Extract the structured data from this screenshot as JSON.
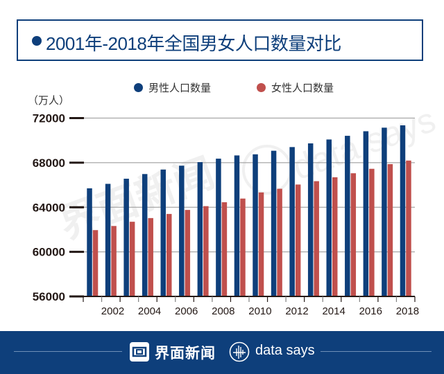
{
  "title": "2001年-2018年全国男女人口数量对比",
  "unit_label": "（万人）",
  "footer": {
    "brand_cn": "界面新闻",
    "brand_en": "data says"
  },
  "watermarks": [
    "界面新闻",
    "data says"
  ],
  "colors": {
    "primary": "#0e3f7b",
    "male": "#0e3f7b",
    "female": "#c0504d",
    "grid": "#a6a6a6"
  },
  "chart_data": {
    "type": "bar",
    "title": "2001年-2018年全国男女人口数量对比",
    "xlabel": "",
    "ylabel": "（万人）",
    "ylim": [
      56000,
      72000
    ],
    "yticks": [
      56000,
      60000,
      64000,
      68000,
      72000
    ],
    "ytick_labels": [
      "56000",
      "60000",
      "64000",
      "68000",
      "72000"
    ],
    "categories": [
      "2001",
      "2002",
      "2003",
      "2004",
      "2005",
      "2006",
      "2007",
      "2008",
      "2009",
      "2010",
      "2011",
      "2012",
      "2013",
      "2014",
      "2015",
      "2016",
      "2017",
      "2018"
    ],
    "xtick_labels": [
      "2002",
      "2004",
      "2006",
      "2008",
      "2010",
      "2012",
      "2014",
      "2016",
      "2018"
    ],
    "grid": true,
    "legend_position": "top",
    "series": [
      {
        "name": "男性人口数量",
        "color": "#0e3f7b",
        "values": [
          65700,
          66100,
          66560,
          66980,
          67380,
          67730,
          68050,
          68360,
          68650,
          68750,
          69070,
          69400,
          69730,
          70080,
          70410,
          70820,
          71140,
          71350
        ]
      },
      {
        "name": "女性人口数量",
        "color": "#c0504d",
        "values": [
          61950,
          62320,
          62700,
          63030,
          63400,
          63760,
          64100,
          64450,
          64780,
          65330,
          65660,
          66040,
          66340,
          66690,
          67050,
          67450,
          67870,
          68190
        ]
      }
    ]
  }
}
